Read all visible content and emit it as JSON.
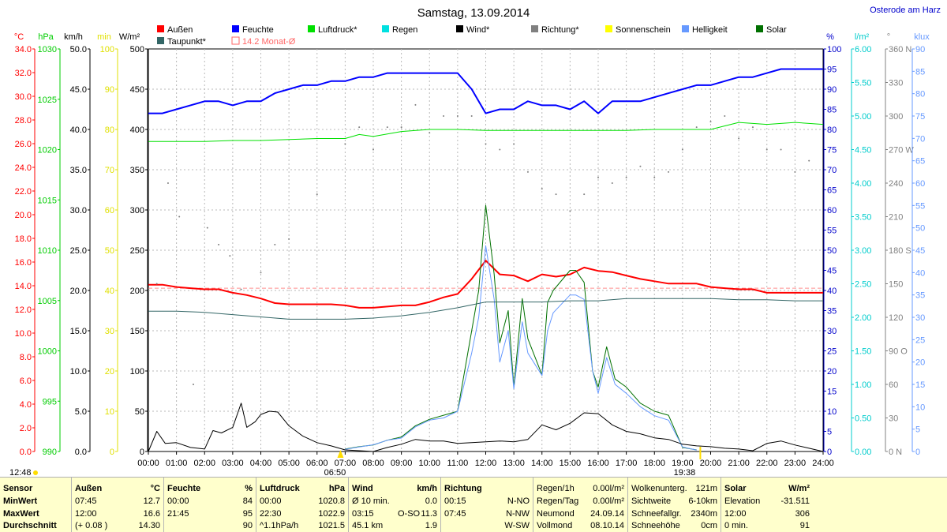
{
  "header": {
    "title": "Samstag, 13.09.2014",
    "station": "Osterode am Harz"
  },
  "legend": [
    {
      "label": "Außen",
      "color": "#ff0000"
    },
    {
      "label": "Feuchte",
      "color": "#0000ff"
    },
    {
      "label": "Luftdruck*",
      "color": "#00e000"
    },
    {
      "label": "Regen",
      "color": "#00e0e0"
    },
    {
      "label": "Wind*",
      "color": "#000000"
    },
    {
      "label": "Richtung*",
      "color": "#808080"
    },
    {
      "label": "Sonnenschein",
      "color": "#ffff00"
    },
    {
      "label": "Helligkeit",
      "color": "#6699ff"
    },
    {
      "label": "Solar",
      "color": "#007000"
    },
    {
      "label": "Taupunkt*",
      "color": "#336666"
    },
    {
      "label": "14.2 Monat-Ø",
      "color": "#ff6666"
    }
  ],
  "axes": {
    "celsius": {
      "unit": "°C",
      "color": "#ff0000",
      "ticks": [
        "34.0",
        "32.0",
        "30.0",
        "28.0",
        "26.0",
        "24.0",
        "22.0",
        "20.0",
        "18.0",
        "16.0",
        "14.0",
        "12.0",
        "10.0",
        "8.0",
        "6.0",
        "4.0",
        "2.0",
        "0.0"
      ]
    },
    "hpa": {
      "unit": "hPa",
      "color": "#00cc00",
      "ticks": [
        "1030",
        "1025",
        "1020",
        "1015",
        "1010",
        "1005",
        "1000",
        "995",
        "990"
      ]
    },
    "kmh": {
      "unit": "km/h",
      "color": "#000000",
      "ticks": [
        "50.0",
        "45.0",
        "40.0",
        "35.0",
        "30.0",
        "25.0",
        "20.0",
        "15.0",
        "10.0",
        "5.0",
        "0.0"
      ]
    },
    "min": {
      "unit": "min",
      "color": "#e0e000",
      "ticks": [
        "100",
        "90",
        "80",
        "70",
        "60",
        "50",
        "40",
        "30",
        "20",
        "10",
        "0"
      ]
    },
    "wm2": {
      "unit": "W/m²",
      "color": "#000000",
      "ticks": [
        "500",
        "450",
        "400",
        "350",
        "300",
        "250",
        "200",
        "150",
        "100",
        "50",
        "0"
      ]
    },
    "percent": {
      "unit": "%",
      "color": "#0000cc",
      "ticks": [
        "100",
        "95",
        "90",
        "85",
        "80",
        "75",
        "70",
        "65",
        "60",
        "55",
        "50",
        "45",
        "40",
        "35",
        "30",
        "25",
        "20",
        "15",
        "10",
        "5",
        "0"
      ]
    },
    "lm2": {
      "unit": "l/m²",
      "color": "#00cccc",
      "ticks": [
        "6.00",
        "5.50",
        "5.00",
        "4.50",
        "4.00",
        "3.50",
        "3.00",
        "2.50",
        "2.00",
        "1.50",
        "1.00",
        "0.50",
        "0.00"
      ]
    },
    "deg": {
      "unit": "°",
      "color": "#808080",
      "ticks": [
        "360 N",
        "330",
        "300",
        "270 W",
        "240",
        "210",
        "180 S",
        "150",
        "120",
        "90 O",
        "60",
        "30",
        "0 N"
      ]
    },
    "klux": {
      "unit": "klux",
      "color": "#6699ff",
      "ticks": [
        "90",
        "85",
        "80",
        "75",
        "70",
        "65",
        "60",
        "55",
        "50",
        "45",
        "40",
        "35",
        "30",
        "25",
        "20",
        "15",
        "10",
        "5",
        "0"
      ]
    }
  },
  "time_ticks": [
    "00:00",
    "01:00",
    "02:00",
    "03:00",
    "04:00",
    "05:00",
    "06:00",
    "07:00",
    "08:00",
    "09:00",
    "10:00",
    "11:00",
    "12:00",
    "13:00",
    "14:00",
    "15:00",
    "16:00",
    "17:00",
    "18:00",
    "19:00",
    "20:00",
    "21:00",
    "22:00",
    "23:00",
    "24:00"
  ],
  "markers": {
    "sunrise": "06:50",
    "sunset": "19:38",
    "current": "12:48"
  },
  "chart_data": {
    "type": "line",
    "xlim": [
      0,
      24
    ],
    "series": [
      {
        "name": "Außen",
        "axis": "celsius",
        "color": "#ff0000",
        "x": [
          0,
          0.5,
          1,
          1.5,
          2,
          2.5,
          3,
          3.5,
          4,
          4.5,
          5,
          5.5,
          6,
          6.5,
          7,
          7.5,
          8,
          8.5,
          9,
          9.5,
          10,
          10.5,
          11,
          11.5,
          12,
          12.5,
          13,
          13.5,
          14,
          14.5,
          15,
          15.5,
          16,
          16.5,
          17,
          17.5,
          18,
          18.5,
          19,
          19.5,
          20,
          20.5,
          21,
          21.5,
          22,
          22.5,
          23,
          23.5,
          24
        ],
        "y": [
          14.5,
          14.5,
          14.3,
          14.2,
          14.1,
          14.1,
          13.8,
          13.6,
          13.3,
          12.9,
          12.8,
          12.8,
          12.8,
          12.8,
          12.7,
          12.5,
          12.5,
          12.6,
          12.7,
          12.7,
          13.0,
          13.4,
          13.7,
          15.0,
          16.6,
          15.4,
          15.3,
          14.8,
          15.4,
          15.2,
          15.4,
          16.0,
          15.7,
          15.6,
          15.3,
          15.0,
          14.8,
          14.6,
          14.6,
          14.6,
          14.3,
          14.2,
          14.1,
          14.1,
          13.8,
          13.8,
          13.8,
          13.8,
          13.8
        ]
      },
      {
        "name": "Feuchte",
        "axis": "percent",
        "color": "#0000ff",
        "x": [
          0,
          0.5,
          1,
          1.5,
          2,
          2.5,
          3,
          3.5,
          4,
          4.5,
          5,
          5.5,
          6,
          6.5,
          7,
          7.5,
          8,
          8.5,
          9,
          9.5,
          10,
          10.5,
          11,
          11.5,
          12,
          12.5,
          13,
          13.5,
          14,
          14.5,
          15,
          15.5,
          16,
          16.5,
          17,
          17.5,
          18,
          18.5,
          19,
          19.5,
          20,
          20.5,
          21,
          21.5,
          22,
          22.5,
          23,
          23.5,
          24
        ],
        "y": [
          84,
          84,
          85,
          86,
          87,
          87,
          86,
          87,
          87,
          89,
          90,
          91,
          91,
          92,
          92,
          93,
          93,
          94,
          94,
          94,
          94,
          94,
          94,
          90,
          84,
          85,
          85,
          87,
          86,
          86,
          85,
          87,
          84,
          87,
          87,
          87,
          88,
          89,
          90,
          91,
          91,
          92,
          93,
          93,
          94,
          95,
          95,
          95,
          95
        ]
      },
      {
        "name": "Luftdruck*",
        "axis": "hpa",
        "color": "#00e000",
        "x": [
          0,
          1,
          2,
          3,
          4,
          5,
          6,
          7,
          7.5,
          8,
          9,
          10,
          11,
          12,
          13,
          14,
          15,
          16,
          17,
          18,
          19,
          20,
          21,
          22,
          23,
          24
        ],
        "y": [
          1020.8,
          1020.8,
          1020.8,
          1020.9,
          1020.9,
          1021.0,
          1021.1,
          1021.1,
          1021.5,
          1021.3,
          1021.8,
          1022.0,
          1022.0,
          1021.9,
          1021.9,
          1021.9,
          1021.9,
          1021.9,
          1021.9,
          1022.0,
          1022.0,
          1022.0,
          1022.7,
          1022.5,
          1022.7,
          1022.5
        ]
      },
      {
        "name": "Solar",
        "axis": "wm2",
        "color": "#007000",
        "x": [
          7,
          7.5,
          8,
          8.5,
          9,
          9.5,
          10,
          10.5,
          11,
          11.5,
          11.75,
          12,
          12.3,
          12.5,
          12.8,
          13,
          13.3,
          13.5,
          14,
          14.2,
          14.4,
          15,
          15.2,
          15.5,
          15.8,
          16,
          16.3,
          16.6,
          17,
          17.5,
          18,
          18.5,
          19,
          19.5
        ],
        "y": [
          3,
          6,
          8,
          14,
          18,
          32,
          40,
          45,
          50,
          150,
          200,
          306,
          220,
          135,
          175,
          80,
          190,
          140,
          95,
          185,
          200,
          225,
          225,
          210,
          100,
          80,
          130,
          90,
          80,
          60,
          50,
          45,
          5,
          2
        ]
      },
      {
        "name": "Helligkeit",
        "axis": "klux",
        "color": "#6699ff",
        "x": [
          7,
          7.5,
          8,
          8.5,
          9,
          9.5,
          10,
          10.5,
          11,
          11.5,
          11.75,
          12,
          12.3,
          12.5,
          12.8,
          13,
          13.3,
          13.5,
          14,
          14.2,
          14.4,
          15,
          15.2,
          15.5,
          15.8,
          16,
          16.3,
          16.6,
          17,
          17.5,
          18,
          18.5,
          19,
          19.5
        ],
        "y": [
          0.5,
          1,
          1.5,
          2.5,
          3,
          5.5,
          7,
          7.5,
          9,
          22,
          30,
          46,
          34,
          20,
          27,
          14,
          29,
          22,
          17,
          27,
          31,
          35,
          35,
          34,
          18,
          13,
          21,
          15,
          13,
          10,
          8,
          7,
          1,
          0.3
        ]
      },
      {
        "name": "Taupunkt*",
        "axis": "celsius",
        "color": "#336666",
        "x": [
          0,
          1,
          2,
          3,
          4,
          5,
          6,
          7,
          8,
          9,
          10,
          11,
          12,
          13,
          14,
          15,
          16,
          17,
          18,
          19,
          20,
          21,
          22,
          23,
          24
        ],
        "y": [
          12.2,
          12.2,
          12.1,
          11.9,
          11.7,
          11.5,
          11.5,
          11.5,
          11.6,
          11.8,
          12.1,
          12.5,
          13.0,
          13.0,
          13.0,
          13.1,
          13.1,
          13.3,
          13.3,
          13.3,
          13.3,
          13.2,
          13.2,
          13.1,
          13.1
        ]
      },
      {
        "name": "Wind*",
        "axis": "kmh",
        "color": "#000000",
        "x": [
          0,
          0.3,
          0.6,
          1,
          1.5,
          2,
          2.3,
          2.6,
          3,
          3.3,
          3.5,
          3.8,
          4,
          4.3,
          4.6,
          5,
          5.5,
          6,
          6.5,
          7,
          7.5,
          8,
          8.5,
          9,
          9.5,
          10,
          10.5,
          11,
          11.5,
          12,
          12.5,
          13,
          13.5,
          14,
          14.5,
          15,
          15.5,
          16,
          16.5,
          17,
          17.5,
          18,
          18.5,
          19,
          19.5,
          20,
          20.5,
          21,
          21.5,
          22,
          22.5,
          23,
          23.5,
          24
        ],
        "y": [
          0,
          2.5,
          1,
          1.1,
          0.5,
          0.3,
          2.6,
          2.3,
          3,
          6,
          3,
          3.7,
          4.6,
          5,
          4.9,
          3.2,
          1.9,
          1.1,
          0.7,
          0.2,
          0.1,
          0,
          0.5,
          0.9,
          1.5,
          1.3,
          1.3,
          1,
          1.1,
          1.2,
          1.3,
          1.2,
          1.5,
          3.3,
          2.7,
          3.5,
          4.8,
          4.7,
          3.3,
          2.5,
          2.2,
          1.7,
          1.5,
          0.9,
          0.7,
          0.6,
          0.4,
          0.3,
          0.1,
          1,
          1.3,
          0.8,
          0.4,
          0
        ]
      },
      {
        "name": "Richtung*",
        "axis": "deg",
        "color": "#808080",
        "style": "dots",
        "x": [
          0.3,
          0.7,
          1.1,
          1.6,
          2.1,
          2.5,
          2.9,
          3.3,
          4,
          4.5,
          5,
          6,
          7,
          7.5,
          8,
          8.5,
          9,
          9.5,
          10,
          10.5,
          11,
          11.5,
          12,
          12.5,
          13,
          13.5,
          14,
          14.5,
          15,
          15.5,
          16,
          16.5,
          17,
          17.5,
          18,
          18.5,
          19,
          19.5,
          20,
          20.5,
          21,
          21.5,
          22,
          22.5,
          23,
          23.5
        ],
        "y": [
          150,
          240,
          210,
          60,
          200,
          185,
          175,
          145,
          160,
          185,
          190,
          230,
          275,
          290,
          270,
          290,
          290,
          310,
          285,
          300,
          300,
          300,
          275,
          270,
          275,
          250,
          235,
          230,
          215,
          230,
          245,
          240,
          245,
          255,
          245,
          250,
          270,
          290,
          295,
          300,
          280,
          290,
          270,
          270,
          250,
          260
        ]
      }
    ]
  },
  "table": {
    "row_labels": [
      "Sensor",
      "MinWert",
      "MaxWert",
      "Durchschnitt"
    ],
    "aussen": {
      "head": "Außen",
      "unit": "°C",
      "rows": [
        [
          "07:45",
          "12.7"
        ],
        [
          "12:00",
          "16.6"
        ],
        [
          "(+ 0.08 )",
          "14.30"
        ]
      ]
    },
    "feuchte": {
      "head": "Feuchte",
      "unit": "%",
      "rows": [
        [
          "00:00",
          "84"
        ],
        [
          "21:45",
          "95"
        ],
        [
          "",
          "90"
        ]
      ]
    },
    "luftdruck": {
      "head": "Luftdruck",
      "unit": "hPa",
      "rows": [
        [
          "00:00",
          "1020.8"
        ],
        [
          "22:30",
          "1022.9"
        ],
        [
          "^1.1hPa/h",
          "1021.5"
        ]
      ]
    },
    "wind": {
      "head": "Wind",
      "unit": "km/h",
      "rows": [
        [
          "Ø 10 min.",
          "",
          "0.0"
        ],
        [
          "03:15",
          "O-SO",
          "11.3"
        ],
        [
          "45.1 km",
          "",
          "1.9"
        ]
      ]
    },
    "richtung": {
      "head": "Richtung",
      "rows": [
        [
          "00:15",
          "N-NO"
        ],
        [
          "07:45",
          "N-NW"
        ],
        [
          "",
          "W-SW"
        ]
      ]
    },
    "regen": {
      "rows": [
        [
          "Regen/1h",
          "0.00l/m²"
        ],
        [
          "Regen/Tag",
          "0.00l/m²"
        ],
        [
          "Neumond",
          "24.09.14"
        ],
        [
          "Vollmond",
          "08.10.14"
        ]
      ]
    },
    "wolken": {
      "rows": [
        [
          "Wolkenunterg.",
          "121m"
        ],
        [
          "Sichtweite",
          "6-10km"
        ],
        [
          "Schneefallgr.",
          "2340m"
        ],
        [
          "Schneehöhe",
          "0cm"
        ]
      ]
    },
    "solar": {
      "head": "Solar",
      "unit": "W/m²",
      "rows": [
        [
          "Elevation",
          "-31.511"
        ],
        [
          "12:00",
          "306"
        ],
        [
          "0 min.",
          "91"
        ]
      ]
    }
  }
}
